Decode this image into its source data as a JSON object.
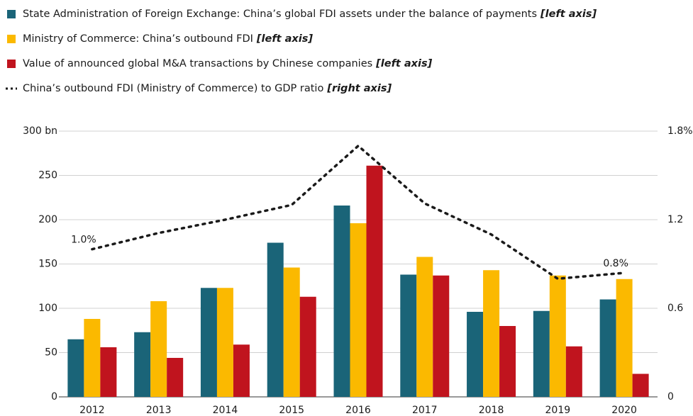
{
  "chart_data": {
    "type": "bar",
    "categories": [
      "2012",
      "2013",
      "2014",
      "2015",
      "2016",
      "2017",
      "2018",
      "2019",
      "2020"
    ],
    "series": [
      {
        "name": "State Administration of Foreign Exchange: China’s global FDI assets under the balance of payments",
        "axis_label": "[left axis]",
        "color": "#1a6478",
        "values": [
          65,
          73,
          123,
          174,
          216,
          138,
          96,
          97,
          110
        ]
      },
      {
        "name": "Ministry of Commerce: China’s outbound FDI",
        "axis_label": "[left axis]",
        "color": "#fbb900",
        "values": [
          88,
          108,
          123,
          146,
          196,
          158,
          143,
          137,
          133
        ]
      },
      {
        "name": "Value of announced global M&A transactions by Chinese companies",
        "axis_label": "[left axis]",
        "color": "#c0141e",
        "values": [
          56,
          44,
          59,
          113,
          261,
          137,
          80,
          57,
          26
        ]
      },
      {
        "name": "China’s outbound FDI (Ministry of Commerce) to GDP ratio",
        "axis_label": "[right axis]",
        "color": "#1a1a1a",
        "type": "line",
        "axis": "y2",
        "values": [
          1.0,
          1.11,
          1.2,
          1.3,
          1.7,
          1.31,
          1.1,
          0.8,
          0.84
        ],
        "value_labels": [
          "1.0%",
          null,
          null,
          null,
          null,
          null,
          null,
          null,
          "0.8%"
        ]
      }
    ],
    "ylim": [
      0,
      300
    ],
    "yticks": [
      0,
      50,
      100,
      150,
      200,
      250,
      {
        "value": 300,
        "label": "300 bn"
      }
    ],
    "y2lim": [
      0,
      1.8
    ],
    "y2ticks": [
      0,
      0.6,
      1.2,
      {
        "value": 1.8,
        "label": "1.8%"
      }
    ],
    "grid": true
  }
}
